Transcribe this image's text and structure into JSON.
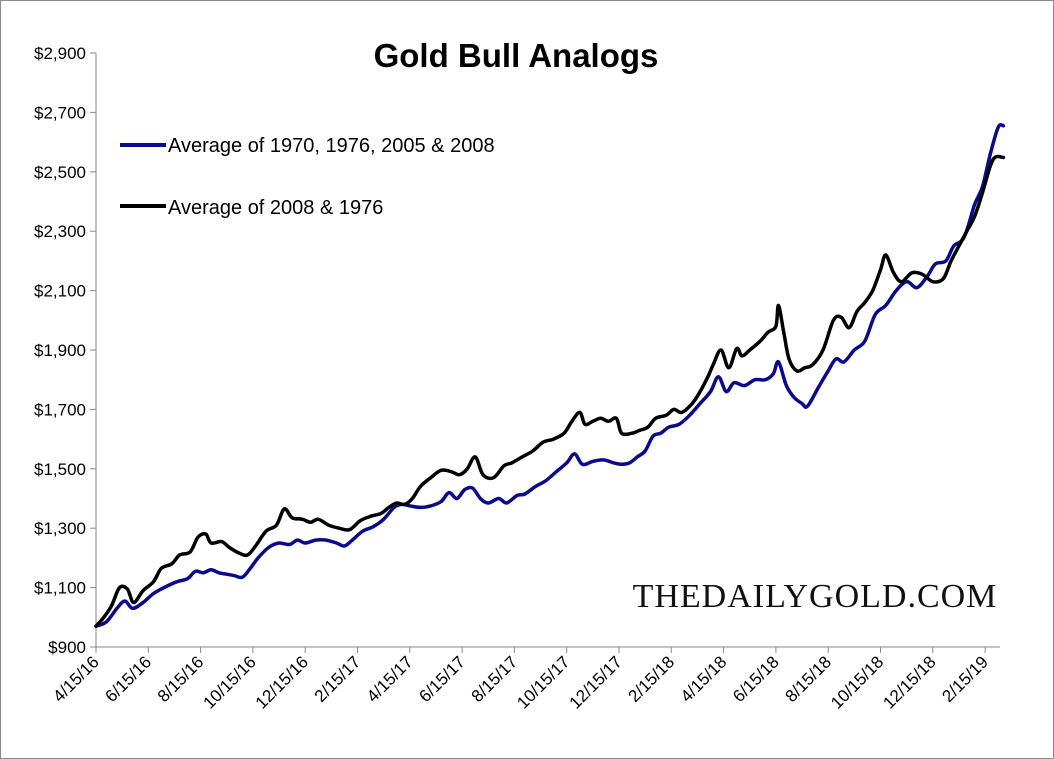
{
  "chart_data": {
    "type": "line",
    "title": "Gold Bull Analogs",
    "watermark": "THEDAILYGOLD.COM",
    "xlabel": "",
    "ylabel": "",
    "ylim": [
      900,
      2900
    ],
    "y_ticks": [
      900,
      1100,
      1300,
      1500,
      1700,
      1900,
      2100,
      2300,
      2500,
      2700,
      2900
    ],
    "y_tick_labels": [
      "$900",
      "$1,100",
      "$1,300",
      "$1,500",
      "$1,700",
      "$1,900",
      "$2,100",
      "$2,300",
      "$2,500",
      "$2,700",
      "$2,900"
    ],
    "x_tick_labels": [
      "4/15/16",
      "6/15/16",
      "8/15/16",
      "10/15/16",
      "12/15/16",
      "2/15/17",
      "4/15/17",
      "6/15/17",
      "8/15/17",
      "10/15/17",
      "12/15/17",
      "2/15/18",
      "4/15/18",
      "6/15/18",
      "8/15/18",
      "10/15/18",
      "12/15/18",
      "2/15/19"
    ],
    "grid": false,
    "legend_position": "top-left",
    "series": [
      {
        "name": "Average of 1970, 1976, 2005 & 2008",
        "color": "#0a0a8c",
        "points": [
          [
            0,
            970
          ],
          [
            0.2,
            985
          ],
          [
            0.4,
            1030
          ],
          [
            0.55,
            1055
          ],
          [
            0.7,
            1030
          ],
          [
            0.9,
            1050
          ],
          [
            1.1,
            1080
          ],
          [
            1.3,
            1100
          ],
          [
            1.55,
            1120
          ],
          [
            1.75,
            1130
          ],
          [
            1.9,
            1155
          ],
          [
            2.05,
            1150
          ],
          [
            2.2,
            1160
          ],
          [
            2.35,
            1150
          ],
          [
            2.5,
            1145
          ],
          [
            2.65,
            1140
          ],
          [
            2.8,
            1135
          ],
          [
            2.95,
            1165
          ],
          [
            3.1,
            1200
          ],
          [
            3.3,
            1235
          ],
          [
            3.5,
            1250
          ],
          [
            3.7,
            1245
          ],
          [
            3.85,
            1260
          ],
          [
            4.0,
            1250
          ],
          [
            4.2,
            1260
          ],
          [
            4.4,
            1260
          ],
          [
            4.6,
            1250
          ],
          [
            4.75,
            1240
          ],
          [
            4.9,
            1260
          ],
          [
            5.1,
            1290
          ],
          [
            5.3,
            1305
          ],
          [
            5.5,
            1330
          ],
          [
            5.7,
            1370
          ],
          [
            5.85,
            1380
          ],
          [
            6.0,
            1375
          ],
          [
            6.2,
            1370
          ],
          [
            6.4,
            1375
          ],
          [
            6.6,
            1390
          ],
          [
            6.75,
            1420
          ],
          [
            6.9,
            1400
          ],
          [
            7.05,
            1430
          ],
          [
            7.2,
            1435
          ],
          [
            7.35,
            1400
          ],
          [
            7.5,
            1385
          ],
          [
            7.7,
            1400
          ],
          [
            7.85,
            1385
          ],
          [
            8.05,
            1410
          ],
          [
            8.2,
            1415
          ],
          [
            8.4,
            1440
          ],
          [
            8.6,
            1460
          ],
          [
            8.8,
            1490
          ],
          [
            9.0,
            1520
          ],
          [
            9.15,
            1550
          ],
          [
            9.3,
            1515
          ],
          [
            9.5,
            1525
          ],
          [
            9.7,
            1530
          ],
          [
            9.9,
            1520
          ],
          [
            10.05,
            1515
          ],
          [
            10.2,
            1520
          ],
          [
            10.35,
            1540
          ],
          [
            10.5,
            1560
          ],
          [
            10.65,
            1610
          ],
          [
            10.8,
            1620
          ],
          [
            10.95,
            1640
          ],
          [
            11.15,
            1650
          ],
          [
            11.35,
            1680
          ],
          [
            11.55,
            1720
          ],
          [
            11.75,
            1760
          ],
          [
            11.9,
            1810
          ],
          [
            12.05,
            1760
          ],
          [
            12.2,
            1790
          ],
          [
            12.4,
            1780
          ],
          [
            12.6,
            1800
          ],
          [
            12.8,
            1800
          ],
          [
            12.95,
            1820
          ],
          [
            13.05,
            1860
          ],
          [
            13.2,
            1780
          ],
          [
            13.35,
            1740
          ],
          [
            13.5,
            1720
          ],
          [
            13.6,
            1710
          ],
          [
            13.8,
            1770
          ],
          [
            14.0,
            1830
          ],
          [
            14.15,
            1870
          ],
          [
            14.3,
            1860
          ],
          [
            14.5,
            1900
          ],
          [
            14.7,
            1930
          ],
          [
            14.9,
            2020
          ],
          [
            15.1,
            2050
          ],
          [
            15.3,
            2100
          ],
          [
            15.5,
            2130
          ],
          [
            15.7,
            2110
          ],
          [
            15.9,
            2150
          ],
          [
            16.05,
            2190
          ],
          [
            16.25,
            2200
          ],
          [
            16.4,
            2250
          ],
          [
            16.6,
            2280
          ],
          [
            16.8,
            2390
          ],
          [
            16.95,
            2450
          ],
          [
            17.1,
            2560
          ],
          [
            17.25,
            2650
          ],
          [
            17.35,
            2655
          ]
        ]
      },
      {
        "name": "Average of 2008 & 1976",
        "color": "#000000",
        "points": [
          [
            0,
            970
          ],
          [
            0.15,
            1000
          ],
          [
            0.3,
            1040
          ],
          [
            0.45,
            1100
          ],
          [
            0.6,
            1095
          ],
          [
            0.72,
            1050
          ],
          [
            0.9,
            1090
          ],
          [
            1.1,
            1120
          ],
          [
            1.25,
            1165
          ],
          [
            1.45,
            1180
          ],
          [
            1.6,
            1210
          ],
          [
            1.8,
            1220
          ],
          [
            1.95,
            1270
          ],
          [
            2.1,
            1280
          ],
          [
            2.2,
            1250
          ],
          [
            2.4,
            1255
          ],
          [
            2.55,
            1235
          ],
          [
            2.75,
            1215
          ],
          [
            2.9,
            1210
          ],
          [
            3.05,
            1240
          ],
          [
            3.25,
            1290
          ],
          [
            3.45,
            1310
          ],
          [
            3.6,
            1365
          ],
          [
            3.75,
            1335
          ],
          [
            3.95,
            1330
          ],
          [
            4.1,
            1320
          ],
          [
            4.25,
            1330
          ],
          [
            4.45,
            1310
          ],
          [
            4.65,
            1300
          ],
          [
            4.85,
            1295
          ],
          [
            5.05,
            1325
          ],
          [
            5.25,
            1340
          ],
          [
            5.45,
            1350
          ],
          [
            5.6,
            1370
          ],
          [
            5.75,
            1385
          ],
          [
            5.9,
            1380
          ],
          [
            6.05,
            1400
          ],
          [
            6.2,
            1440
          ],
          [
            6.4,
            1470
          ],
          [
            6.6,
            1495
          ],
          [
            6.8,
            1490
          ],
          [
            6.95,
            1480
          ],
          [
            7.1,
            1500
          ],
          [
            7.25,
            1540
          ],
          [
            7.4,
            1480
          ],
          [
            7.6,
            1470
          ],
          [
            7.8,
            1510
          ],
          [
            7.95,
            1520
          ],
          [
            8.15,
            1540
          ],
          [
            8.35,
            1560
          ],
          [
            8.55,
            1590
          ],
          [
            8.75,
            1600
          ],
          [
            8.95,
            1620
          ],
          [
            9.1,
            1660
          ],
          [
            9.25,
            1690
          ],
          [
            9.35,
            1650
          ],
          [
            9.5,
            1660
          ],
          [
            9.65,
            1670
          ],
          [
            9.8,
            1660
          ],
          [
            9.95,
            1670
          ],
          [
            10.05,
            1620
          ],
          [
            10.25,
            1620
          ],
          [
            10.4,
            1630
          ],
          [
            10.55,
            1640
          ],
          [
            10.7,
            1670
          ],
          [
            10.9,
            1680
          ],
          [
            11.05,
            1700
          ],
          [
            11.2,
            1690
          ],
          [
            11.4,
            1720
          ],
          [
            11.55,
            1760
          ],
          [
            11.7,
            1810
          ],
          [
            11.8,
            1850
          ],
          [
            11.95,
            1900
          ],
          [
            12.1,
            1840
          ],
          [
            12.25,
            1905
          ],
          [
            12.35,
            1880
          ],
          [
            12.5,
            1900
          ],
          [
            12.7,
            1930
          ],
          [
            12.85,
            1960
          ],
          [
            13.0,
            1980
          ],
          [
            13.05,
            2050
          ],
          [
            13.15,
            1960
          ],
          [
            13.25,
            1870
          ],
          [
            13.4,
            1830
          ],
          [
            13.55,
            1840
          ],
          [
            13.7,
            1850
          ],
          [
            13.9,
            1900
          ],
          [
            14.1,
            2000
          ],
          [
            14.25,
            2010
          ],
          [
            14.4,
            1975
          ],
          [
            14.55,
            2030
          ],
          [
            14.7,
            2060
          ],
          [
            14.85,
            2100
          ],
          [
            15.0,
            2170
          ],
          [
            15.1,
            2220
          ],
          [
            15.25,
            2160
          ],
          [
            15.4,
            2130
          ],
          [
            15.6,
            2160
          ],
          [
            15.8,
            2155
          ],
          [
            16.0,
            2130
          ],
          [
            16.2,
            2140
          ],
          [
            16.35,
            2200
          ],
          [
            16.5,
            2250
          ],
          [
            16.65,
            2300
          ],
          [
            16.8,
            2350
          ],
          [
            16.95,
            2430
          ],
          [
            17.1,
            2520
          ],
          [
            17.2,
            2550
          ],
          [
            17.35,
            2548
          ]
        ]
      }
    ]
  }
}
